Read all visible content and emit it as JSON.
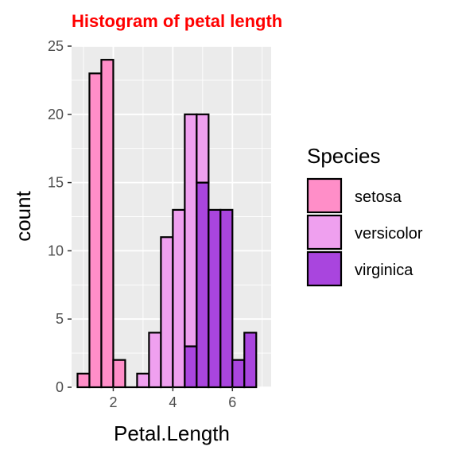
{
  "chart_data": {
    "type": "bar",
    "title": "Histogram of petal length",
    "title_color": "#FF0000",
    "xlabel": "Petal.Length",
    "ylabel": "count",
    "xlim": [
      0.6,
      7.3
    ],
    "ylim": [
      0,
      25
    ],
    "x_ticks": [
      2,
      4,
      6
    ],
    "y_ticks": [
      0,
      5,
      10,
      15,
      20,
      25
    ],
    "bin_width": 0.4,
    "stacked": true,
    "grid": true,
    "panel_background": "#EBEBEB",
    "outline_color": "#000000",
    "legend": {
      "title": "Species",
      "position": "right"
    },
    "bin_centers": [
      1.0,
      1.4,
      1.8,
      2.2,
      2.6,
      3.0,
      3.4,
      3.8,
      4.2,
      4.6,
      5.0,
      5.4,
      5.8,
      6.2,
      6.6
    ],
    "series": [
      {
        "name": "setosa",
        "color": "#FF8EC8",
        "values": [
          1,
          23,
          24,
          2,
          0,
          0,
          0,
          0,
          0,
          0,
          0,
          0,
          0,
          0,
          0
        ]
      },
      {
        "name": "versicolor",
        "color": "#EFA0EF",
        "values": [
          0,
          0,
          0,
          0,
          0,
          1,
          4,
          11,
          13,
          17,
          5,
          0,
          0,
          0,
          0
        ]
      },
      {
        "name": "virginica",
        "color": "#A945DE",
        "values": [
          0,
          0,
          0,
          0,
          0,
          0,
          0,
          0,
          0,
          3,
          15,
          13,
          13,
          2,
          4
        ]
      }
    ]
  }
}
